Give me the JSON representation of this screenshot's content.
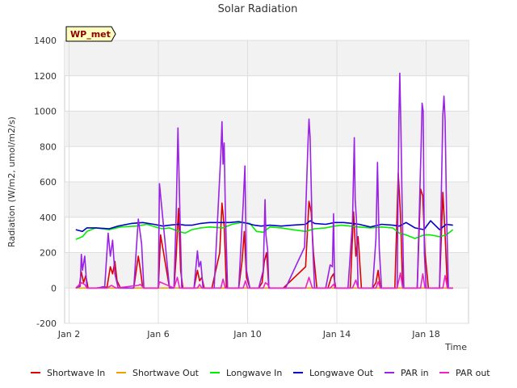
{
  "chart_data": {
    "type": "line",
    "title": "Solar Radiation",
    "xlabel": "Time",
    "ylabel": "Radiation (W/m2, umol/m2/s)",
    "station_label": "WP_met",
    "xlim": [
      1.8,
      19.9
    ],
    "ylim": [
      -200,
      1400
    ],
    "yticks": [
      -200,
      0,
      200,
      400,
      600,
      800,
      1000,
      1200,
      1400
    ],
    "xticks": [
      {
        "value": 2,
        "label": "Jan 2"
      },
      {
        "value": 6,
        "label": "Jan 6"
      },
      {
        "value": 10,
        "label": "Jan 10"
      },
      {
        "value": 14,
        "label": "Jan 14"
      },
      {
        "value": 18,
        "label": "Jan 18"
      }
    ],
    "grid": true,
    "legend_position": "bottom",
    "series": [
      {
        "name": "Shortwave In",
        "color": "#dd0000",
        "x": [
          2.3,
          2.45,
          2.55,
          2.65,
          2.75,
          2.85,
          3.2,
          3.7,
          3.85,
          3.95,
          4.05,
          4.15,
          4.3,
          4.9,
          5.1,
          5.2,
          5.3,
          5.5,
          6.0,
          6.1,
          6.5,
          6.7,
          6.8,
          6.9,
          7.0,
          7.1,
          7.6,
          7.75,
          7.85,
          7.95,
          8.05,
          8.2,
          8.4,
          8.75,
          8.85,
          8.95,
          9.05,
          9.2,
          9.6,
          9.75,
          9.85,
          9.95,
          10.1,
          10.5,
          10.65,
          10.75,
          10.85,
          10.95,
          11.1,
          11.6,
          12.6,
          12.75,
          12.85,
          12.95,
          13.1,
          13.6,
          13.75,
          13.85,
          13.95,
          14.1,
          14.6,
          14.75,
          14.85,
          14.95,
          15.1,
          15.6,
          15.75,
          15.85,
          15.95,
          16.1,
          16.6,
          16.75,
          16.85,
          16.95,
          17.1,
          17.6,
          17.75,
          17.85,
          17.95,
          18.1,
          18.6,
          18.75,
          18.85,
          18.95,
          19.2
        ],
        "y": [
          0,
          5,
          90,
          30,
          70,
          0,
          0,
          5,
          120,
          80,
          150,
          40,
          0,
          0,
          180,
          100,
          0,
          0,
          0,
          300,
          0,
          0,
          180,
          450,
          100,
          0,
          0,
          100,
          40,
          60,
          0,
          0,
          0,
          200,
          480,
          350,
          0,
          0,
          0,
          150,
          320,
          60,
          0,
          0,
          30,
          150,
          200,
          0,
          0,
          0,
          120,
          490,
          430,
          200,
          0,
          0,
          60,
          80,
          0,
          0,
          0,
          430,
          180,
          290,
          0,
          0,
          30,
          100,
          0,
          0,
          0,
          650,
          420,
          0,
          0,
          0,
          560,
          520,
          200,
          0,
          0,
          540,
          300,
          0,
          0
        ]
      },
      {
        "name": "Shortwave Out",
        "color": "#f0a000",
        "x": [
          2.3,
          19.2
        ],
        "y": [
          0,
          0
        ]
      },
      {
        "name": "Longwave In",
        "color": "#00ee00",
        "x": [
          2.3,
          2.6,
          2.8,
          3.2,
          3.8,
          4.3,
          5.0,
          5.5,
          6.0,
          6.2,
          6.5,
          6.9,
          7.2,
          7.5,
          7.9,
          8.3,
          8.9,
          9.3,
          9.7,
          10.1,
          10.4,
          10.7,
          11.0,
          11.5,
          12.0,
          12.6,
          13.0,
          13.5,
          13.9,
          14.2,
          14.6,
          15.0,
          15.5,
          16.0,
          16.5,
          16.8,
          17.1,
          17.5,
          17.9,
          18.2,
          18.6,
          18.9,
          19.2
        ],
        "y": [
          275,
          290,
          320,
          340,
          330,
          345,
          350,
          360,
          340,
          335,
          340,
          320,
          310,
          330,
          340,
          345,
          340,
          360,
          370,
          365,
          320,
          315,
          345,
          340,
          330,
          320,
          335,
          340,
          350,
          355,
          350,
          345,
          340,
          345,
          340,
          310,
          300,
          280,
          300,
          300,
          290,
          300,
          330
        ]
      },
      {
        "name": "Longwave Out",
        "color": "#0000cc",
        "x": [
          2.3,
          2.6,
          2.8,
          3.2,
          3.8,
          4.2,
          4.8,
          5.3,
          5.8,
          6.2,
          6.5,
          6.9,
          7.2,
          7.5,
          7.9,
          8.3,
          8.8,
          9.2,
          9.6,
          10.0,
          10.3,
          10.6,
          11.0,
          11.5,
          12.0,
          12.6,
          12.8,
          13.0,
          13.5,
          13.9,
          14.3,
          14.7,
          15.0,
          15.5,
          16.0,
          16.5,
          16.8,
          17.1,
          17.5,
          17.9,
          18.2,
          18.6,
          18.9,
          19.2
        ],
        "y": [
          330,
          320,
          340,
          340,
          335,
          350,
          365,
          370,
          360,
          350,
          355,
          360,
          355,
          355,
          365,
          370,
          370,
          370,
          375,
          365,
          355,
          350,
          355,
          350,
          355,
          360,
          380,
          365,
          360,
          370,
          370,
          365,
          360,
          345,
          360,
          355,
          350,
          370,
          340,
          330,
          380,
          330,
          360,
          355
        ]
      },
      {
        "name": "PAR in",
        "color": "#9a22e6",
        "x": [
          2.3,
          2.5,
          2.55,
          2.6,
          2.7,
          2.8,
          3.3,
          3.6,
          3.75,
          3.85,
          3.95,
          4.05,
          4.2,
          4.9,
          5.1,
          5.25,
          5.35,
          5.5,
          6.0,
          6.05,
          6.5,
          6.7,
          6.8,
          6.88,
          6.95,
          7.05,
          7.2,
          7.6,
          7.75,
          7.82,
          7.9,
          8.0,
          8.2,
          8.5,
          8.8,
          8.85,
          8.9,
          8.95,
          9.0,
          9.1,
          9.2,
          9.6,
          9.8,
          9.88,
          9.95,
          10.1,
          10.5,
          10.7,
          10.78,
          10.82,
          10.9,
          10.95,
          11.05,
          11.7,
          12.55,
          12.7,
          12.75,
          12.8,
          12.9,
          13.0,
          13.5,
          13.7,
          13.8,
          13.85,
          13.9,
          14.0,
          14.5,
          14.7,
          14.78,
          14.82,
          14.88,
          14.95,
          15.1,
          15.6,
          15.75,
          15.82,
          15.9,
          16.0,
          16.5,
          16.7,
          16.78,
          16.82,
          16.87,
          16.92,
          17.0,
          17.1,
          17.6,
          17.78,
          17.82,
          17.87,
          17.92,
          18.0,
          18.1,
          18.6,
          18.75,
          18.8,
          18.85,
          18.92,
          19.0,
          19.2
        ],
        "y": [
          0,
          10,
          190,
          100,
          180,
          0,
          0,
          10,
          310,
          180,
          270,
          80,
          0,
          0,
          390,
          250,
          0,
          0,
          0,
          590,
          0,
          0,
          420,
          905,
          500,
          0,
          0,
          0,
          210,
          120,
          150,
          0,
          0,
          0,
          760,
          940,
          700,
          820,
          450,
          0,
          0,
          0,
          470,
          690,
          100,
          0,
          0,
          100,
          500,
          300,
          210,
          0,
          0,
          0,
          230,
          800,
          955,
          850,
          300,
          0,
          0,
          130,
          120,
          420,
          0,
          0,
          0,
          380,
          850,
          500,
          380,
          0,
          0,
          0,
          280,
          710,
          220,
          0,
          0,
          0,
          960,
          1215,
          900,
          500,
          0,
          0,
          0,
          820,
          1045,
          1000,
          200,
          0,
          0,
          0,
          980,
          1085,
          950,
          400,
          0,
          0
        ]
      },
      {
        "name": "PAR out",
        "color": "#ee22cc",
        "x": [
          2.3,
          2.55,
          2.7,
          2.8,
          3.7,
          3.9,
          4.1,
          5.1,
          5.2,
          5.35,
          6.0,
          6.05,
          6.7,
          6.85,
          6.95,
          7.75,
          7.85,
          7.95,
          8.8,
          8.9,
          9.0,
          9.8,
          9.9,
          10.0,
          10.7,
          10.8,
          10.9,
          11.0,
          12.6,
          12.75,
          12.9,
          13.7,
          13.85,
          13.95,
          14.7,
          14.85,
          14.95,
          15.75,
          15.85,
          15.95,
          16.7,
          16.85,
          16.95,
          17.75,
          17.85,
          17.95,
          18.75,
          18.85,
          18.95,
          19.2
        ],
        "y": [
          0,
          30,
          20,
          0,
          0,
          15,
          0,
          15,
          20,
          0,
          0,
          35,
          0,
          60,
          0,
          0,
          20,
          0,
          0,
          50,
          0,
          0,
          40,
          0,
          0,
          30,
          20,
          0,
          0,
          60,
          0,
          0,
          20,
          0,
          0,
          45,
          0,
          0,
          35,
          0,
          0,
          85,
          0,
          0,
          80,
          0,
          0,
          70,
          0,
          0
        ]
      }
    ]
  }
}
